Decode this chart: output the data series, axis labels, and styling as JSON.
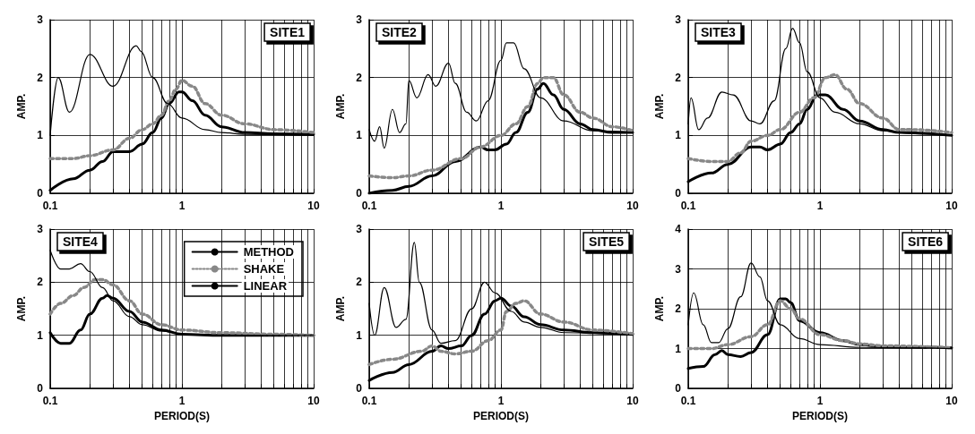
{
  "chart_data": [
    {
      "type": "line",
      "title": "SITE1",
      "ylabel": "AMP.",
      "log": "x",
      "grid": true,
      "xlim": [
        0.1,
        10
      ],
      "ylim": [
        0,
        3
      ],
      "yticks": [
        0,
        1,
        2,
        3
      ],
      "xticks": [
        0.1,
        {
          "value": 0.2,
          "label": null
        },
        {
          "value": 0.3,
          "label": null
        },
        {
          "value": 0.4,
          "label": null
        },
        {
          "value": 0.5,
          "label": null
        },
        {
          "value": 0.6,
          "label": null
        },
        {
          "value": 0.7,
          "label": null
        },
        {
          "value": 0.8,
          "label": null
        },
        {
          "value": 0.9,
          "label": null
        },
        1,
        {
          "value": 2,
          "label": null
        },
        {
          "value": 3,
          "label": null
        },
        {
          "value": 4,
          "label": null
        },
        {
          "value": 5,
          "label": null
        },
        {
          "value": 6,
          "label": null
        },
        {
          "value": 7,
          "label": null
        },
        {
          "value": 8,
          "label": null
        },
        {
          "value": 9,
          "label": null
        },
        10
      ],
      "series": [
        {
          "color": "#000000",
          "line_style": "solid",
          "x": [
            0.1,
            0.15,
            0.2,
            0.25,
            0.3,
            0.4,
            0.5,
            0.6,
            0.7,
            0.8,
            0.95,
            1.0,
            1.2,
            1.5,
            2,
            3,
            5,
            10
          ],
          "values": [
            0.05,
            0.25,
            0.4,
            0.55,
            0.72,
            0.72,
            0.85,
            1.05,
            1.3,
            1.55,
            1.75,
            1.75,
            1.6,
            1.35,
            1.15,
            1.05,
            1.03,
            1.02
          ]
        },
        {
          "color": "#888888",
          "line_style": "dotted",
          "x": [
            0.1,
            0.15,
            0.2,
            0.3,
            0.4,
            0.5,
            0.6,
            0.7,
            0.8,
            0.9,
            1.0,
            1.2,
            1.5,
            2,
            3,
            5,
            10
          ],
          "values": [
            0.6,
            0.6,
            0.65,
            0.75,
            0.95,
            1.1,
            1.2,
            1.35,
            1.6,
            1.8,
            1.95,
            1.85,
            1.55,
            1.35,
            1.2,
            1.1,
            1.05
          ]
        },
        {
          "color": "#000000",
          "line_style": "solid",
          "x": [
            0.1,
            0.115,
            0.14,
            0.2,
            0.3,
            0.45,
            0.49,
            0.6,
            0.78,
            1.0,
            1.5,
            2,
            3,
            10
          ],
          "values": [
            1.0,
            2.0,
            1.4,
            2.4,
            1.85,
            2.55,
            2.45,
            2.0,
            1.55,
            1.3,
            1.1,
            1.05,
            1.02,
            1.0
          ]
        }
      ]
    },
    {
      "type": "line",
      "title": "SITE2",
      "ylabel": "AMP.",
      "log": "x",
      "grid": true,
      "xlim": [
        0.1,
        10
      ],
      "ylim": [
        0,
        3
      ],
      "yticks": [
        0,
        1,
        2,
        3
      ],
      "xticks": [
        0.1,
        {
          "value": 0.2,
          "label": null
        },
        {
          "value": 0.3,
          "label": null
        },
        {
          "value": 0.4,
          "label": null
        },
        {
          "value": 0.5,
          "label": null
        },
        {
          "value": 0.6,
          "label": null
        },
        {
          "value": 0.7,
          "label": null
        },
        {
          "value": 0.8,
          "label": null
        },
        {
          "value": 0.9,
          "label": null
        },
        1,
        {
          "value": 2,
          "label": null
        },
        {
          "value": 3,
          "label": null
        },
        {
          "value": 4,
          "label": null
        },
        {
          "value": 5,
          "label": null
        },
        {
          "value": 6,
          "label": null
        },
        {
          "value": 7,
          "label": null
        },
        {
          "value": 8,
          "label": null
        },
        {
          "value": 9,
          "label": null
        },
        10
      ],
      "series": [
        {
          "color": "#000000",
          "line_style": "solid",
          "x": [
            0.1,
            0.15,
            0.2,
            0.3,
            0.45,
            0.7,
            0.8,
            0.9,
            1.1,
            1.3,
            1.6,
            1.9,
            2.1,
            2.5,
            3,
            4,
            5,
            7,
            10
          ],
          "values": [
            0.0,
            0.05,
            0.12,
            0.3,
            0.55,
            0.8,
            0.75,
            0.75,
            0.85,
            1.05,
            1.4,
            1.8,
            1.9,
            1.7,
            1.45,
            1.2,
            1.1,
            1.05,
            1.05
          ]
        },
        {
          "color": "#888888",
          "line_style": "dotted",
          "x": [
            0.1,
            0.15,
            0.2,
            0.3,
            0.5,
            0.7,
            1.0,
            1.3,
            1.6,
            1.9,
            2.1,
            2.5,
            3,
            4,
            5,
            7,
            10
          ],
          "values": [
            0.3,
            0.27,
            0.3,
            0.4,
            0.6,
            0.8,
            1.0,
            1.2,
            1.5,
            1.9,
            2.0,
            2.0,
            1.7,
            1.4,
            1.3,
            1.15,
            1.08
          ]
        },
        {
          "color": "#000000",
          "line_style": "solid",
          "x": [
            0.1,
            0.11,
            0.12,
            0.13,
            0.15,
            0.17,
            0.19,
            0.2,
            0.23,
            0.28,
            0.32,
            0.4,
            0.45,
            0.55,
            0.65,
            0.8,
            1.0,
            1.1,
            1.25,
            1.5,
            2,
            3,
            5,
            10
          ],
          "values": [
            1.1,
            0.9,
            1.15,
            0.78,
            1.45,
            1.05,
            1.2,
            1.95,
            1.65,
            2.05,
            1.85,
            2.25,
            1.9,
            1.4,
            1.25,
            1.6,
            2.3,
            2.6,
            2.6,
            2.15,
            1.65,
            1.25,
            1.08,
            1.05
          ]
        }
      ]
    },
    {
      "type": "line",
      "title": "SITE3",
      "ylabel": "AMP.",
      "log": "x",
      "grid": true,
      "xlim": [
        0.1,
        10
      ],
      "ylim": [
        0,
        3
      ],
      "yticks": [
        0,
        1,
        2,
        3
      ],
      "xticks": [
        0.1,
        {
          "value": 0.2,
          "label": null
        },
        {
          "value": 0.3,
          "label": null
        },
        {
          "value": 0.4,
          "label": null
        },
        {
          "value": 0.5,
          "label": null
        },
        {
          "value": 0.6,
          "label": null
        },
        {
          "value": 0.7,
          "label": null
        },
        {
          "value": 0.8,
          "label": null
        },
        {
          "value": 0.9,
          "label": null
        },
        1,
        {
          "value": 2,
          "label": null
        },
        {
          "value": 3,
          "label": null
        },
        {
          "value": 4,
          "label": null
        },
        {
          "value": 5,
          "label": null
        },
        {
          "value": 6,
          "label": null
        },
        {
          "value": 7,
          "label": null
        },
        {
          "value": 8,
          "label": null
        },
        {
          "value": 9,
          "label": null
        },
        10
      ],
      "series": [
        {
          "color": "#000000",
          "line_style": "solid",
          "x": [
            0.1,
            0.15,
            0.2,
            0.3,
            0.35,
            0.4,
            0.5,
            0.6,
            0.7,
            0.8,
            0.95,
            1.1,
            1.5,
            2,
            3,
            4,
            10
          ],
          "values": [
            0.2,
            0.35,
            0.5,
            0.8,
            0.8,
            0.75,
            0.85,
            1.05,
            1.2,
            1.45,
            1.7,
            1.7,
            1.45,
            1.25,
            1.1,
            1.05,
            1.0
          ]
        },
        {
          "color": "#888888",
          "line_style": "dotted",
          "x": [
            0.1,
            0.15,
            0.2,
            0.25,
            0.3,
            0.4,
            0.5,
            0.7,
            0.9,
            1.1,
            1.3,
            1.6,
            2,
            3,
            4,
            5,
            10
          ],
          "values": [
            0.6,
            0.55,
            0.55,
            0.7,
            0.9,
            1.0,
            1.1,
            1.4,
            1.65,
            2.0,
            2.05,
            1.8,
            1.55,
            1.3,
            1.1,
            1.1,
            1.05
          ]
        },
        {
          "color": "#000000",
          "line_style": "solid",
          "x": [
            0.1,
            0.105,
            0.12,
            0.14,
            0.18,
            0.22,
            0.3,
            0.35,
            0.45,
            0.55,
            0.62,
            0.7,
            0.8,
            1.0,
            1.3,
            2,
            3,
            5,
            10
          ],
          "values": [
            1.2,
            1.65,
            1.1,
            1.3,
            1.75,
            1.7,
            1.25,
            1.2,
            1.6,
            2.5,
            2.85,
            2.6,
            2.1,
            1.65,
            1.4,
            1.2,
            1.08,
            1.03,
            1.0
          ]
        }
      ]
    },
    {
      "type": "line",
      "title": "SITE4",
      "ylabel": "AMP.",
      "xlabel": "PERIOD(S)",
      "log": "x",
      "grid": true,
      "legend": "top right",
      "xlim": [
        0.1,
        10
      ],
      "ylim": [
        0,
        3
      ],
      "yticks": [
        0,
        1,
        2,
        3
      ],
      "xticks": [
        0.1,
        {
          "value": 0.2,
          "label": null
        },
        {
          "value": 0.3,
          "label": null
        },
        {
          "value": 0.4,
          "label": null
        },
        {
          "value": 0.5,
          "label": null
        },
        {
          "value": 0.6,
          "label": null
        },
        {
          "value": 0.7,
          "label": null
        },
        {
          "value": 0.8,
          "label": null
        },
        {
          "value": 0.9,
          "label": null
        },
        1,
        {
          "value": 2,
          "label": null
        },
        {
          "value": 3,
          "label": null
        },
        {
          "value": 4,
          "label": null
        },
        {
          "value": 5,
          "label": null
        },
        {
          "value": 6,
          "label": null
        },
        {
          "value": 7,
          "label": null
        },
        {
          "value": 8,
          "label": null
        },
        {
          "value": 9,
          "label": null
        },
        10
      ],
      "series": [
        {
          "name": "METHOD",
          "color": "#000000",
          "line_style": "solid",
          "x": [
            0.1,
            0.12,
            0.14,
            0.17,
            0.2,
            0.25,
            0.27,
            0.3,
            0.4,
            0.5,
            0.7,
            1,
            2,
            10
          ],
          "values": [
            1.05,
            0.85,
            0.85,
            1.1,
            1.4,
            1.7,
            1.75,
            1.7,
            1.45,
            1.25,
            1.1,
            1.02,
            1.0,
            1.0
          ]
        },
        {
          "name": "SHAKE",
          "color": "#888888",
          "line_style": "dotted",
          "x": [
            0.1,
            0.12,
            0.15,
            0.18,
            0.22,
            0.25,
            0.3,
            0.4,
            0.5,
            0.7,
            1,
            2,
            5,
            10
          ],
          "values": [
            1.4,
            1.6,
            1.75,
            1.9,
            2.05,
            2.05,
            1.95,
            1.65,
            1.4,
            1.2,
            1.1,
            1.05,
            1.02,
            1.0
          ]
        },
        {
          "name": "LINEAR",
          "color": "#000000",
          "line_style": "solid",
          "x": [
            0.1,
            0.12,
            0.14,
            0.17,
            0.2,
            0.25,
            0.3,
            0.4,
            0.5,
            0.7,
            1,
            2,
            10
          ],
          "values": [
            2.6,
            2.25,
            2.25,
            2.35,
            2.2,
            1.9,
            1.65,
            1.35,
            1.2,
            1.08,
            1.02,
            1.0,
            1.0
          ]
        }
      ]
    },
    {
      "type": "line",
      "title": "SITE5",
      "ylabel": "AMP.",
      "xlabel": "PERIOD(S)",
      "log": "x",
      "grid": true,
      "xlim": [
        0.1,
        10
      ],
      "ylim": [
        0,
        3
      ],
      "yticks": [
        0,
        1,
        2,
        3
      ],
      "xticks": [
        0.1,
        {
          "value": 0.2,
          "label": null
        },
        {
          "value": 0.3,
          "label": null
        },
        {
          "value": 0.4,
          "label": null
        },
        {
          "value": 0.5,
          "label": null
        },
        {
          "value": 0.6,
          "label": null
        },
        {
          "value": 0.7,
          "label": null
        },
        {
          "value": 0.8,
          "label": null
        },
        {
          "value": 0.9,
          "label": null
        },
        1,
        {
          "value": 2,
          "label": null
        },
        {
          "value": 3,
          "label": null
        },
        {
          "value": 4,
          "label": null
        },
        {
          "value": 5,
          "label": null
        },
        {
          "value": 6,
          "label": null
        },
        {
          "value": 7,
          "label": null
        },
        {
          "value": 8,
          "label": null
        },
        {
          "value": 9,
          "label": null
        },
        10
      ],
      "series": [
        {
          "color": "#000000",
          "line_style": "solid",
          "x": [
            0.1,
            0.15,
            0.2,
            0.3,
            0.35,
            0.4,
            0.5,
            0.6,
            0.75,
            0.9,
            1.0,
            1.2,
            1.5,
            2,
            3,
            5,
            10
          ],
          "values": [
            0.15,
            0.3,
            0.45,
            0.7,
            0.8,
            0.75,
            0.8,
            1.0,
            1.4,
            1.65,
            1.7,
            1.55,
            1.35,
            1.2,
            1.1,
            1.05,
            1.02
          ]
        },
        {
          "color": "#888888",
          "line_style": "dotted",
          "x": [
            0.1,
            0.15,
            0.25,
            0.3,
            0.35,
            0.45,
            0.6,
            0.8,
            1.0,
            1.1,
            1.3,
            1.5,
            2,
            3,
            5,
            10
          ],
          "values": [
            0.45,
            0.55,
            0.7,
            0.8,
            0.7,
            0.65,
            0.7,
            0.9,
            1.1,
            1.45,
            1.6,
            1.65,
            1.4,
            1.25,
            1.1,
            1.03
          ]
        },
        {
          "color": "#000000",
          "line_style": "solid",
          "x": [
            0.1,
            0.11,
            0.13,
            0.16,
            0.19,
            0.22,
            0.24,
            0.3,
            0.35,
            0.45,
            0.6,
            0.75,
            0.9,
            1.2,
            1.5,
            2,
            3,
            10
          ],
          "values": [
            1.6,
            1.0,
            1.9,
            1.15,
            1.3,
            2.75,
            2.0,
            1.1,
            0.85,
            0.9,
            1.5,
            2.0,
            1.8,
            1.45,
            1.25,
            1.15,
            1.05,
            1.0
          ]
        }
      ]
    },
    {
      "type": "line",
      "title": "SITE6",
      "ylabel": "AMP.",
      "xlabel": "PERIOD(S)",
      "log": "x",
      "grid": true,
      "xlim": [
        0.1,
        10
      ],
      "ylim": [
        0,
        4
      ],
      "yticks": [
        0,
        1,
        2,
        3,
        4
      ],
      "xticks": [
        0.1,
        {
          "value": 0.2,
          "label": null
        },
        {
          "value": 0.3,
          "label": null
        },
        {
          "value": 0.4,
          "label": null
        },
        {
          "value": 0.5,
          "label": null
        },
        {
          "value": 0.6,
          "label": null
        },
        {
          "value": 0.7,
          "label": null
        },
        {
          "value": 0.8,
          "label": null
        },
        {
          "value": 0.9,
          "label": null
        },
        1,
        {
          "value": 2,
          "label": null
        },
        {
          "value": 3,
          "label": null
        },
        {
          "value": 4,
          "label": null
        },
        {
          "value": 5,
          "label": null
        },
        {
          "value": 6,
          "label": null
        },
        {
          "value": 7,
          "label": null
        },
        {
          "value": 8,
          "label": null
        },
        {
          "value": 9,
          "label": null
        },
        10
      ],
      "series": [
        {
          "color": "#000000",
          "line_style": "solid",
          "x": [
            0.1,
            0.13,
            0.16,
            0.18,
            0.2,
            0.25,
            0.3,
            0.4,
            0.5,
            0.55,
            0.6,
            0.7,
            1,
            1.5,
            2,
            3,
            10
          ],
          "values": [
            0.5,
            0.55,
            0.85,
            0.95,
            0.85,
            0.8,
            0.9,
            1.35,
            2.25,
            2.25,
            2.15,
            1.7,
            1.4,
            1.2,
            1.1,
            1.05,
            1.02
          ]
        },
        {
          "color": "#888888",
          "line_style": "dotted",
          "x": [
            0.1,
            0.15,
            0.2,
            0.3,
            0.4,
            0.5,
            0.6,
            0.7,
            1,
            1.5,
            2,
            3,
            10
          ],
          "values": [
            1.0,
            1.0,
            1.1,
            1.3,
            1.6,
            2.2,
            2.0,
            1.75,
            1.35,
            1.2,
            1.12,
            1.07,
            1.02
          ]
        },
        {
          "color": "#000000",
          "line_style": "solid",
          "x": [
            0.1,
            0.11,
            0.13,
            0.15,
            0.17,
            0.2,
            0.25,
            0.3,
            0.35,
            0.4,
            0.5,
            0.7,
            1,
            2,
            10
          ],
          "values": [
            1.6,
            2.4,
            1.6,
            1.15,
            1.15,
            1.5,
            2.3,
            3.15,
            2.8,
            2.2,
            1.6,
            1.25,
            1.1,
            1.03,
            1.0
          ]
        }
      ]
    }
  ]
}
